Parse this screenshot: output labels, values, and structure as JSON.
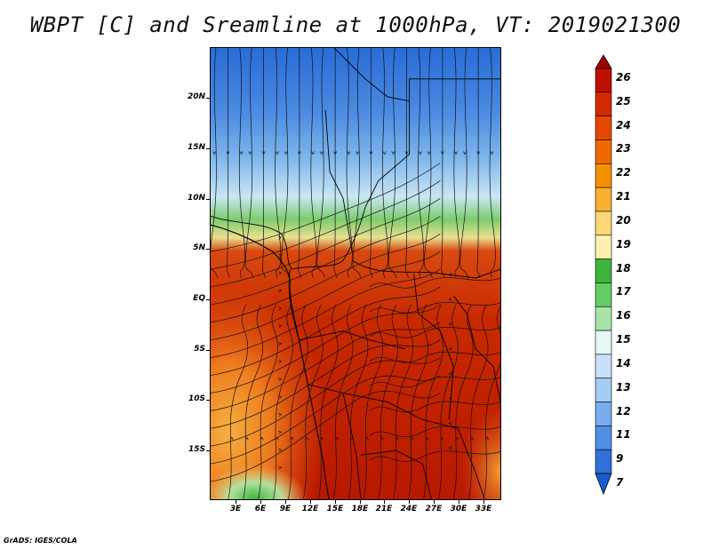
{
  "title": "WBPT [C] and Sreamline at 1000hPa, VT: 2019021300",
  "footer": "GrADS: IGES/COLA",
  "lat_labels": [
    "20N",
    "15N",
    "10N",
    "5N",
    "EQ",
    "5S",
    "10S",
    "15S"
  ],
  "lon_labels": [
    "3E",
    "6E",
    "9E",
    "12E",
    "15E",
    "18E",
    "21E",
    "24E",
    "27E",
    "30E",
    "33E"
  ],
  "colorbar": {
    "levels": [
      "26",
      "25",
      "24",
      "23",
      "22",
      "21",
      "20",
      "19",
      "18",
      "17",
      "16",
      "15",
      "14",
      "13",
      "12",
      "11",
      "9",
      "7"
    ],
    "colors": [
      "#a50000",
      "#c01000",
      "#d42a00",
      "#e24800",
      "#ee6a00",
      "#f29000",
      "#f7b030",
      "#fbd878",
      "#fff0b0",
      "#3cb43c",
      "#64cc64",
      "#a8e4a8",
      "#e4f8f8",
      "#c8e0f8",
      "#a4ccf4",
      "#78acec",
      "#5090e4",
      "#3070d8",
      "#1a5ad0"
    ]
  },
  "colors": {
    "cold": "#2a70d8",
    "cool": "#8ab8ee",
    "green": "#4cc04c",
    "warm": "#f0a030",
    "hot": "#d43c00",
    "veryhot": "#b01400"
  }
}
